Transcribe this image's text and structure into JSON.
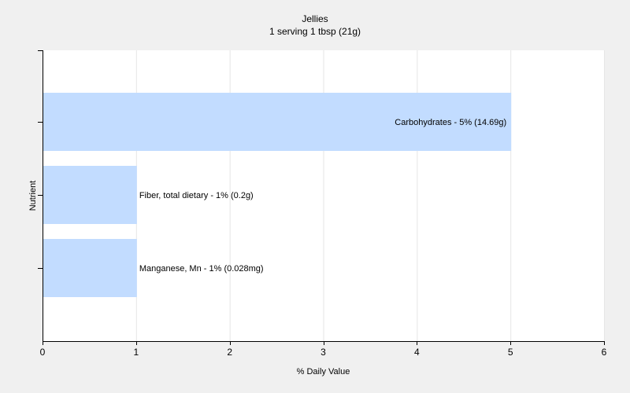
{
  "chart_data": {
    "type": "bar",
    "orientation": "horizontal",
    "title": "Jellies",
    "subtitle": "1 serving 1 tbsp (21g)",
    "xlabel": "% Daily Value",
    "ylabel": "Nutrient",
    "xlim": [
      0,
      6
    ],
    "xticks": [
      0,
      1,
      2,
      3,
      4,
      5,
      6
    ],
    "grid": true,
    "bar_color": "#c2dcff",
    "categories": [
      "Carbohydrates",
      "Fiber, total dietary",
      "Manganese, Mn"
    ],
    "values": [
      5,
      1,
      1
    ],
    "labels": [
      "Carbohydrates - 5% (14.69g)",
      "Fiber, total dietary - 1% (0.2g)",
      "Manganese, Mn - 1% (0.028mg)"
    ]
  }
}
